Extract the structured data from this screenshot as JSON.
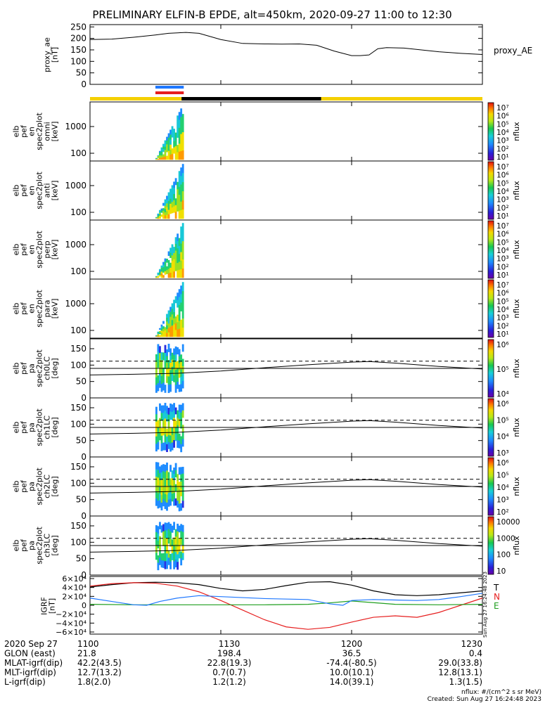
{
  "title": "PRELIMINARY ELFIN-B EPDE, alt=450km, 2020-09-27 11:00 to 12:30",
  "chart_data": {
    "type": "line",
    "time_axis": {
      "date_label": "2020 Sep 27",
      "ticks": [
        "1100",
        "1130",
        "1200",
        "1230"
      ],
      "range_minutes": [
        0,
        90
      ]
    },
    "colors": {
      "yellow": "#f5d000",
      "black": "#000000",
      "blue": "#1f78ff",
      "red": "#e61e1e",
      "green": "#1e9e1e"
    },
    "proxy_ae": {
      "ylabel": [
        "proxy_ae",
        "[nT]"
      ],
      "label_right": "proxy_AE",
      "yticks": [
        "250",
        "200",
        "150",
        "100",
        "50",
        "0"
      ],
      "ylim": [
        0,
        260
      ],
      "x": [
        0,
        5,
        10,
        15,
        18,
        22,
        25,
        30,
        35,
        40,
        44,
        48,
        52,
        56,
        60,
        62,
        64,
        66,
        68,
        72,
        76,
        80,
        85,
        90
      ],
      "y": [
        195,
        197,
        205,
        215,
        222,
        226,
        222,
        195,
        178,
        176,
        175,
        176,
        170,
        145,
        125,
        125,
        128,
        155,
        160,
        158,
        150,
        142,
        135,
        130
      ]
    },
    "status_bars": [
      {
        "color": "yellow",
        "t_start": 0,
        "t_end": 90
      },
      {
        "color": "black",
        "t_start": 21,
        "t_end": 53
      }
    ],
    "markers": [
      {
        "color": "blue",
        "t_start": 15,
        "t_end": 21.5
      },
      {
        "color": "red",
        "t_start": 15,
        "t_end": 21.5
      }
    ],
    "energy_panels": [
      {
        "ylabel": [
          "elb",
          "pef",
          "en",
          "spec2plot",
          "omni",
          "[keV]"
        ],
        "yticks": [
          "1000",
          "100"
        ],
        "cbar_ticks": [
          "10⁷",
          "10⁶",
          "10⁵",
          "10⁴",
          "10³",
          "10²",
          "10¹"
        ],
        "cbar_label": "nflux"
      },
      {
        "ylabel": [
          "elb",
          "pef",
          "en",
          "spec2plot",
          "anti",
          "[keV]"
        ],
        "yticks": [
          "1000",
          "100"
        ],
        "cbar_ticks": [
          "10⁷",
          "10⁶",
          "10⁵",
          "10⁴",
          "10³",
          "10²",
          "10¹"
        ],
        "cbar_label": "nflux"
      },
      {
        "ylabel": [
          "elb",
          "pef",
          "en",
          "spec2plot",
          "perp",
          "[keV]"
        ],
        "yticks": [
          "1000",
          "100"
        ],
        "cbar_ticks": [
          "10⁷",
          "10⁶",
          "10⁵",
          "10⁴",
          "10³",
          "10²",
          "10¹"
        ],
        "cbar_label": "nflux"
      },
      {
        "ylabel": [
          "elb",
          "pef",
          "en",
          "spec2plot",
          "para",
          "[keV]"
        ],
        "yticks": [
          "1000",
          "100"
        ],
        "cbar_ticks": [
          "10⁷",
          "10⁶",
          "10⁵",
          "10⁴",
          "10³",
          "10²",
          "10¹"
        ],
        "cbar_label": "nflux"
      }
    ],
    "pitch_panels": [
      {
        "ylabel": [
          "elb",
          "pef",
          "pa",
          "spec2plot",
          "ch0LC",
          "[deg]"
        ],
        "yticks": [
          "150",
          "100",
          "50",
          "0"
        ],
        "cbar_ticks": [
          "10⁶",
          "10⁵",
          "10⁴"
        ],
        "cbar_label": "nflux"
      },
      {
        "ylabel": [
          "elb",
          "pef",
          "pa",
          "spec2plot",
          "ch1LC",
          "[deg]"
        ],
        "yticks": [
          "150",
          "100",
          "50",
          "0"
        ],
        "cbar_ticks": [
          "10⁶",
          "10⁵",
          "10⁴",
          "10³"
        ],
        "cbar_label": "nflux"
      },
      {
        "ylabel": [
          "elb",
          "pef",
          "pa",
          "spec2plot",
          "ch2LC",
          "[deg]"
        ],
        "yticks": [
          "150",
          "100",
          "50",
          "0"
        ],
        "cbar_ticks": [
          "10⁶",
          "10⁵",
          "10⁴",
          "10³",
          "10²"
        ],
        "cbar_label": "nflux"
      },
      {
        "ylabel": [
          "elb",
          "pef",
          "pa",
          "spec2plot",
          "ch3LC",
          "[deg]"
        ],
        "yticks": [
          "150",
          "100",
          "50",
          "0"
        ],
        "cbar_ticks": [
          "10000",
          "1000",
          "100",
          "10"
        ],
        "cbar_label": "nflux"
      }
    ],
    "pitch_curves": {
      "ylim": [
        0,
        180
      ],
      "lc_dashed": 112,
      "lc_solid": 90,
      "x": [
        0,
        10,
        20,
        30,
        40,
        50,
        60,
        64,
        70,
        80,
        90
      ],
      "y": [
        70,
        72,
        75,
        82,
        92,
        101,
        109,
        111,
        106,
        96,
        88
      ]
    },
    "igrf": {
      "ylabel": [
        "IGRF",
        "[nT]"
      ],
      "yticks": [
        "6×10⁴",
        "4×10⁴",
        "2×10⁴",
        "0",
        "−2×10⁴",
        "−4×10⁴",
        "−6×10⁴"
      ],
      "ylim": [
        -60000,
        60000
      ],
      "legend": [
        "T",
        "N",
        "E"
      ],
      "series": [
        {
          "name": "T",
          "color": "black",
          "x": [
            0,
            5,
            10,
            15,
            20,
            25,
            30,
            35,
            40,
            45,
            50,
            55,
            60,
            65,
            70,
            75,
            80,
            85,
            90
          ],
          "y": [
            38000,
            43000,
            47000,
            48000,
            47000,
            43000,
            35000,
            30000,
            33000,
            41000,
            48000,
            49000,
            42000,
            30000,
            22000,
            20000,
            22000,
            26000,
            30000
          ]
        },
        {
          "name": "N",
          "color": "red",
          "x": [
            0,
            5,
            10,
            15,
            20,
            25,
            30,
            35,
            40,
            45,
            50,
            55,
            60,
            65,
            70,
            75,
            80,
            85,
            90
          ],
          "y": [
            40000,
            45000,
            47000,
            46000,
            40000,
            28000,
            10000,
            -10000,
            -30000,
            -45000,
            -50000,
            -46000,
            -35000,
            -25000,
            -22000,
            -25000,
            -15000,
            0,
            15000
          ]
        },
        {
          "name": "E",
          "color": "green",
          "x": [
            0,
            10,
            20,
            30,
            40,
            50,
            55,
            60,
            70,
            80,
            90
          ],
          "y": [
            2000,
            1000,
            1000,
            1000,
            1000,
            2000,
            5000,
            9000,
            2000,
            1000,
            2000
          ]
        },
        {
          "name": "",
          "color": "blue",
          "x": [
            0,
            5,
            10,
            13,
            16,
            20,
            25,
            30,
            40,
            50,
            55,
            58,
            60,
            65,
            70,
            75,
            80,
            85,
            90
          ],
          "y": [
            15000,
            8000,
            1000,
            0,
            8000,
            15000,
            20000,
            18000,
            14000,
            12000,
            3000,
            0,
            10000,
            12000,
            11000,
            10000,
            12000,
            18000,
            25000
          ]
        }
      ]
    },
    "orbit_table": {
      "rows": [
        {
          "label": "2020 Sep 27",
          "values": [
            "1100",
            "1130",
            "1200",
            "1230"
          ]
        },
        {
          "label": "GLON (east)",
          "values": [
            "21.8",
            "198.4",
            "36.5",
            "0.4"
          ]
        },
        {
          "label": "MLAT-igrf(dip)",
          "values": [
            "42.2(43.5)",
            "22.8(19.3)",
            "-74.4(-80.5)",
            "29.0(33.8)"
          ]
        },
        {
          "label": "MLT-igrf(dip)",
          "values": [
            "12.7(13.2)",
            "0.7(0.7)",
            "10.0(10.1)",
            "12.8(13.1)"
          ]
        },
        {
          "label": "L-igrf(dip)",
          "values": [
            "1.8(2.0)",
            "1.2(1.2)",
            "14.0(39.1)",
            "1.3(1.5)"
          ]
        }
      ]
    },
    "footer": {
      "units": "nflux: #/(cm^2 s sr MeV)",
      "created": "Created: Sun Aug 27 16:24:48 2023",
      "rotated_stamp": "Sun Aug 27 16:24:48 2023"
    }
  }
}
